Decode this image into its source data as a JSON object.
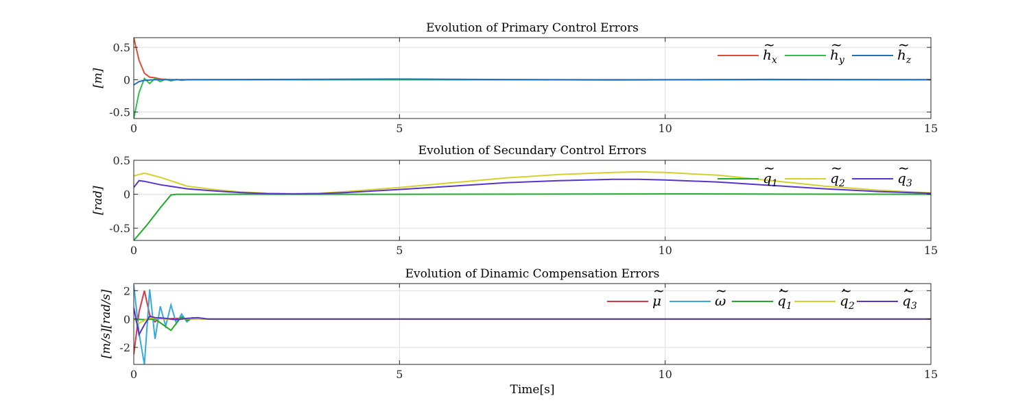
{
  "chart_data": [
    {
      "type": "line",
      "title": "Evolution of Primary Control Errors",
      "ylabel": "[m]",
      "xlabel": "",
      "xlim": [
        0,
        15
      ],
      "ylim": [
        -0.6,
        0.65
      ],
      "xticks": [
        0,
        5,
        10,
        15
      ],
      "yticks": [
        -0.5,
        0,
        0.5
      ],
      "ytick_labels": [
        "-0.5",
        "0",
        "0.5"
      ],
      "grid": true,
      "legend": "top-right",
      "series": [
        {
          "name": "h̃x",
          "color": "#e34a33",
          "x": [
            0,
            0.1,
            0.2,
            0.3,
            0.4,
            0.5,
            0.6,
            0.7,
            0.8,
            1,
            2,
            15
          ],
          "y": [
            0.65,
            0.3,
            0.1,
            0.04,
            0.03,
            0.01,
            0.005,
            0,
            0,
            0,
            0,
            0
          ]
        },
        {
          "name": "h̃y",
          "color": "#2ec04a",
          "x": [
            0,
            0.1,
            0.2,
            0.3,
            0.4,
            0.5,
            0.6,
            0.7,
            0.8,
            0.9,
            1,
            2,
            15
          ],
          "y": [
            -0.6,
            -0.2,
            0.02,
            -0.06,
            0.02,
            -0.03,
            0.01,
            -0.02,
            0.005,
            -0.01,
            0,
            0,
            0
          ]
        },
        {
          "name": "h̃z",
          "color": "#1f6fbf",
          "x": [
            0,
            0.1,
            0.2,
            0.4,
            1,
            5,
            9,
            12,
            15
          ],
          "y": [
            -0.08,
            -0.03,
            -0.01,
            0,
            0,
            0.01,
            -0.005,
            0.005,
            0
          ]
        }
      ]
    },
    {
      "type": "line",
      "title": "Evolution of Secundary Control Errors",
      "ylabel": "[rad]",
      "xlabel": "",
      "xlim": [
        0,
        15
      ],
      "ylim": [
        -0.68,
        0.5
      ],
      "xticks": [
        0,
        5,
        10,
        15
      ],
      "yticks": [
        -0.5,
        0,
        0.5
      ],
      "ytick_labels": [
        "-0.5",
        "0",
        "0.5"
      ],
      "grid": true,
      "legend": "top-right",
      "series": [
        {
          "name": "q̃1",
          "color": "#1faa2a",
          "x": [
            0,
            0.25,
            0.5,
            0.7,
            0.8,
            1,
            2,
            5,
            10,
            15
          ],
          "y": [
            -0.68,
            -0.45,
            -0.2,
            -0.01,
            0,
            0,
            0,
            0,
            0.005,
            0
          ]
        },
        {
          "name": "q̃2",
          "color": "#d4cf2a",
          "x": [
            0,
            0.2,
            0.5,
            1,
            1.5,
            2,
            2.5,
            3,
            3.5,
            4,
            5,
            6,
            7,
            8,
            9,
            9.5,
            10,
            11,
            12,
            13,
            14,
            15
          ],
          "y": [
            0.27,
            0.31,
            0.25,
            0.12,
            0.07,
            0.035,
            0.015,
            0.01,
            0.015,
            0.04,
            0.1,
            0.17,
            0.24,
            0.29,
            0.32,
            0.33,
            0.32,
            0.28,
            0.2,
            0.12,
            0.06,
            0.02
          ]
        },
        {
          "name": "q̃3",
          "color": "#5533cc",
          "x": [
            0,
            0.1,
            0.2,
            0.5,
            1,
            1.5,
            2,
            2.5,
            3,
            3.5,
            4,
            5,
            6,
            7,
            8,
            9,
            9.5,
            10,
            11,
            12,
            13,
            14,
            15
          ],
          "y": [
            0.1,
            0.2,
            0.19,
            0.14,
            0.08,
            0.05,
            0.025,
            0.01,
            0.005,
            0.01,
            0.025,
            0.07,
            0.12,
            0.17,
            0.2,
            0.22,
            0.22,
            0.21,
            0.18,
            0.13,
            0.08,
            0.04,
            0.015
          ]
        }
      ]
    },
    {
      "type": "line",
      "title": "Evolution of Dinamic Compensation Errors",
      "ylabel": "[m/s][rad/s]",
      "xlabel": "Time[s]",
      "xlim": [
        0,
        15
      ],
      "ylim": [
        -3.2,
        2.5
      ],
      "xticks": [
        0,
        5,
        10,
        15
      ],
      "yticks": [
        -2,
        0,
        2
      ],
      "ytick_labels": [
        "-2",
        "0",
        "2"
      ],
      "grid": true,
      "legend": "top-right",
      "series": [
        {
          "name": "μ̃",
          "color": "#dd3344",
          "x": [
            0,
            0.1,
            0.2,
            0.3,
            0.4,
            0.5,
            0.6,
            0.8,
            1,
            2,
            15
          ],
          "y": [
            -2.5,
            0.5,
            2.0,
            0.3,
            -0.2,
            0.1,
            0,
            0.05,
            0,
            0,
            0
          ]
        },
        {
          "name": "ω̃",
          "color": "#33aadd",
          "x": [
            0,
            0.1,
            0.2,
            0.3,
            0.4,
            0.5,
            0.6,
            0.7,
            0.8,
            0.9,
            1,
            1.1,
            1.3,
            2,
            15
          ],
          "y": [
            2.4,
            -1.0,
            -3.2,
            2.1,
            -1.4,
            0.9,
            -0.5,
            1.0,
            -0.3,
            0.35,
            -0.2,
            0.1,
            0,
            0,
            0
          ]
        },
        {
          "name": "q̃̇1",
          "color": "#22aa22",
          "x": [
            0,
            0.2,
            0.4,
            0.55,
            0.7,
            0.8,
            0.9,
            1,
            1.1,
            1.3,
            2,
            15
          ],
          "y": [
            0.0,
            -0.05,
            0.0,
            -0.4,
            -0.8,
            -0.3,
            0.15,
            -0.1,
            0.05,
            0,
            0,
            0
          ]
        },
        {
          "name": "q̃̇2",
          "color": "#d4cf2a",
          "x": [
            0,
            0.1,
            0.2,
            0.3,
            0.4,
            0.6,
            0.8,
            1,
            1.2,
            2,
            15
          ],
          "y": [
            0.0,
            -0.3,
            -0.1,
            0.1,
            0.05,
            0,
            -0.05,
            0.02,
            0,
            0,
            0
          ]
        },
        {
          "name": "q̃̇3",
          "color": "#5533cc",
          "x": [
            0,
            0.1,
            0.2,
            0.3,
            0.4,
            0.6,
            0.8,
            1,
            1.2,
            1.4,
            2,
            15
          ],
          "y": [
            0.8,
            -1.1,
            -0.4,
            0.2,
            0.1,
            0.05,
            -0.05,
            0.05,
            0.1,
            0,
            0,
            0
          ]
        }
      ]
    }
  ]
}
